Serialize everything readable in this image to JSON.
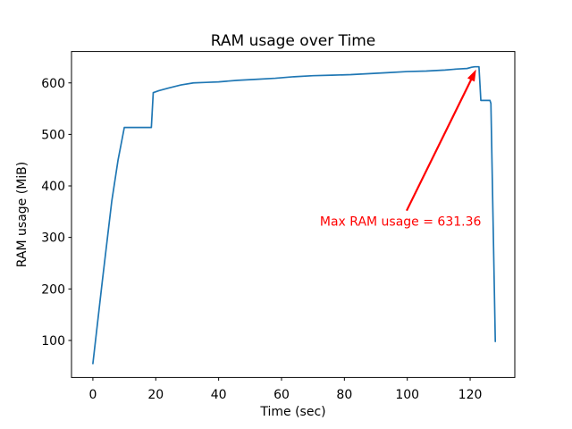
{
  "chart_data": {
    "type": "line",
    "title": "RAM usage over Time",
    "xlabel": "Time (sec)",
    "ylabel": "RAM usage (MiB)",
    "xlim": [
      -6.8,
      134.2
    ],
    "ylim": [
      28,
      661
    ],
    "xticks": [
      0,
      20,
      40,
      60,
      80,
      100,
      120
    ],
    "yticks": [
      100,
      200,
      300,
      400,
      500,
      600
    ],
    "grid": false,
    "legend": null,
    "background_color": "#ffffff",
    "spine_color": "#000000",
    "line_color": "#1f77b4",
    "series": [
      {
        "name": "RAM usage",
        "points": [
          [
            0,
            55
          ],
          [
            3,
            215
          ],
          [
            6,
            370
          ],
          [
            8,
            450
          ],
          [
            10,
            513.5
          ],
          [
            18.6,
            513.5
          ],
          [
            19.2,
            581
          ],
          [
            21,
            585
          ],
          [
            24,
            590
          ],
          [
            28,
            596
          ],
          [
            32,
            600
          ],
          [
            36,
            601
          ],
          [
            40,
            602
          ],
          [
            46,
            605
          ],
          [
            52,
            607
          ],
          [
            58,
            609
          ],
          [
            64,
            612
          ],
          [
            70,
            614
          ],
          [
            76,
            615
          ],
          [
            82,
            616
          ],
          [
            88,
            618
          ],
          [
            94,
            620
          ],
          [
            100,
            622
          ],
          [
            106,
            623
          ],
          [
            112,
            625
          ],
          [
            116,
            627
          ],
          [
            119,
            628
          ],
          [
            120.5,
            630.5
          ],
          [
            121.5,
            631.36
          ],
          [
            122.8,
            631.36
          ],
          [
            123.4,
            566
          ],
          [
            126.3,
            566
          ],
          [
            126.6,
            560
          ],
          [
            128,
            98
          ]
        ]
      }
    ],
    "max_value": 631.36,
    "annotation": {
      "text": "Max RAM usage = 631.36",
      "color": "#ff0000",
      "text_xy": [
        72.2,
        323
      ],
      "arrow_from": [
        99.8,
        352
      ],
      "arrow_to": [
        121.9,
        626
      ]
    }
  }
}
